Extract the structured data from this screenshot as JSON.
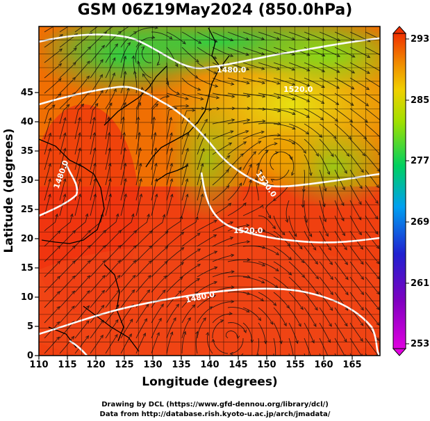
{
  "title": "GSM 06Z19May2024 (850.0hPa)",
  "x_axis": {
    "label": "Longitude (degrees)",
    "ticks": [
      "110",
      "115",
      "120",
      "125",
      "130",
      "135",
      "140",
      "145",
      "150",
      "155",
      "160",
      "165"
    ]
  },
  "y_axis": {
    "label": "Latitude (degrees)",
    "ticks": [
      "0",
      "5",
      "10",
      "15",
      "20",
      "25",
      "30",
      "35",
      "40",
      "45"
    ]
  },
  "colorbar": {
    "ticks": [
      "253",
      "261",
      "269",
      "277",
      "285",
      "293"
    ],
    "colors": [
      "#e000e0",
      "#2020d0",
      "#00a0f0",
      "#00d060",
      "#a0e000",
      "#f0d000",
      "#f09000",
      "#f03000"
    ]
  },
  "contour_labels": [
    "1480.0",
    "1520.0",
    "1520.0",
    "1480.0",
    "1520.0",
    "1480.0"
  ],
  "credits": {
    "line1": "Drawing by DCL (https://www.gfd-dennou.org/library/dcl/)",
    "line2": "Data from http://database.rish.kyoto-u.ac.jp/arch/jmadata/"
  }
}
